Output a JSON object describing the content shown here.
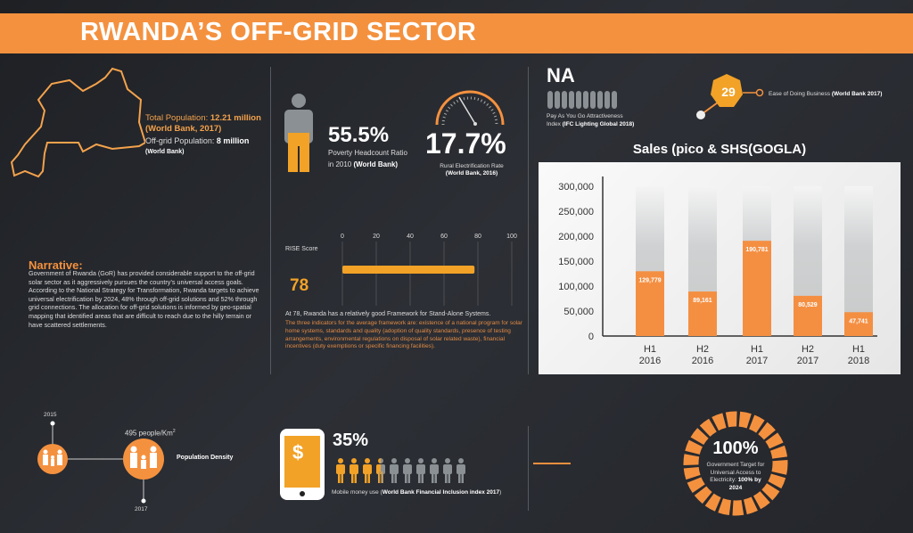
{
  "header": {
    "title": "RWANDA’S OFF-GRID SECTOR"
  },
  "population": {
    "total_label": "Total Population: ",
    "total_value": "12.21 million",
    "total_source": "(World Bank, 2017)",
    "offgrid_label": "Off-grid Population: ",
    "offgrid_value": "8 million",
    "offgrid_source": "(World Bank)"
  },
  "poverty": {
    "value": "55.5%",
    "label": "Poverty Headcount Ratio",
    "label2": "in 2010 ",
    "source": "(World Bank)",
    "fill_percent": 55.5
  },
  "rural": {
    "value": "17.7%",
    "label": "Rural Electrification Rate",
    "source": "(World Bank, 2016)"
  },
  "payg": {
    "value": "NA",
    "label": "Pay As You Go Attractiveness",
    "label2": "Index ",
    "source": "(IFC Lighting Global 2018)"
  },
  "ease": {
    "value": "29",
    "label": "Ease of Doing Business ",
    "source": "(World Bank 2017)"
  },
  "narrative": {
    "title": "Narrative:",
    "text": "Government of Rwanda (GoR) has provided considerable support to the off-grid solar sector as it aggressively pursues the country’s universal access goals. According to the National Strategy for Transformation, Rwanda targets to achieve universal electrification by 2024, 48% through off-grid solutions and 52% through grid connections. The allocation for off-grid solutions is informed by geo-spatial mapping that identified areas that are difficult to reach due to the hilly terrain or have scattered settlements."
  },
  "rise": {
    "label": "RISE Score",
    "value": "78",
    "score": 78,
    "ticks": [
      "0",
      "20",
      "40",
      "60",
      "80",
      "100"
    ],
    "summary": "At 78, Rwanda has a relatively good Framework for Stand-Alone Systems.",
    "detail": "The three indicators for the average framework are: existence of a national program for solar home systems, standards and quality (adoption of quality standards, presence of testing arrangements, environmental regulations on disposal of solar related waste), financial incentives (duty exemptions or specific financing facilities)."
  },
  "density": {
    "year1": "2015",
    "year2": "2017",
    "value": "495 people/Km",
    "sup": "2",
    "label": "Population Density"
  },
  "mobile": {
    "value": "35%",
    "label": "Mobile money use (",
    "source": "World Bank Financial Inclusion index 2017",
    "close": ")",
    "icon": "dollar-sign-icon",
    "fraction": 0.35
  },
  "target": {
    "value": "100%",
    "text": "Government Target for Universal Access to Electricity: ",
    "bold": "100% by 2024"
  },
  "colors": {
    "accent": "#f4913f",
    "gold": "#f2a227",
    "grey": "#8a9093"
  },
  "chart_data": {
    "type": "bar",
    "title": "Sales (pico & SHS(GOGLA)",
    "categories": [
      "H1 2016",
      "H2 2016",
      "H1 2017",
      "H2 2017",
      "H1 2018"
    ],
    "category_lines": [
      [
        "H1",
        "2016"
      ],
      [
        "H2",
        "2016"
      ],
      [
        "H1",
        "2017"
      ],
      [
        "H2",
        "2017"
      ],
      [
        "H1",
        "2018"
      ]
    ],
    "values": [
      129779,
      89161,
      190781,
      80529,
      47741
    ],
    "data_labels": [
      "129,779",
      "89,161",
      "190,781",
      "80,529",
      "47,741"
    ],
    "ylim": [
      0,
      300000
    ],
    "yticks": [
      "0",
      "50,000",
      "100,000",
      "150,000",
      "200,000",
      "250,000",
      "300,000"
    ],
    "grid": false,
    "legend": "none"
  }
}
